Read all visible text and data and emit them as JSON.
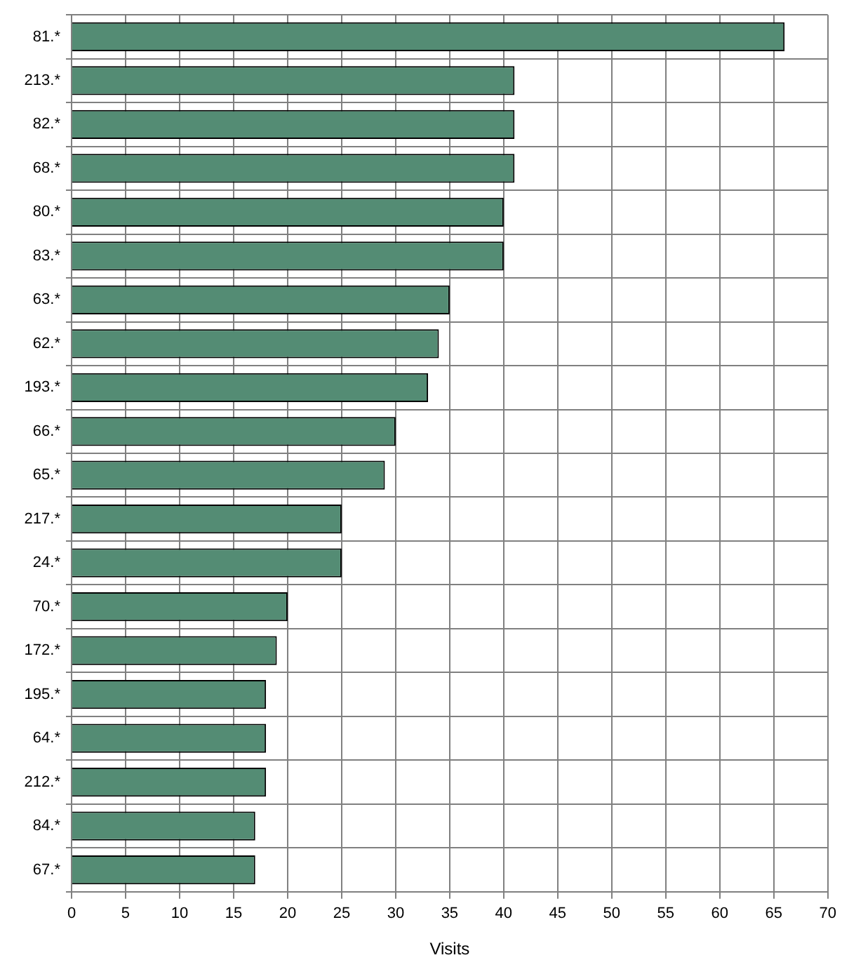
{
  "chart_data": {
    "type": "bar",
    "orientation": "horizontal",
    "categories": [
      "81.*",
      "213.*",
      "82.*",
      "68.*",
      "80.*",
      "83.*",
      "63.*",
      "62.*",
      "193.*",
      "66.*",
      "65.*",
      "217.*",
      "24.*",
      "70.*",
      "172.*",
      "195.*",
      "64.*",
      "212.*",
      "84.*",
      "67.*"
    ],
    "values": [
      66,
      41,
      41,
      41,
      40,
      40,
      35,
      34,
      33,
      30,
      29,
      25,
      25,
      20,
      19,
      18,
      18,
      18,
      17,
      17
    ],
    "color": "#548c74",
    "xlabel": "Visits",
    "xlim": [
      0,
      70
    ],
    "xticks": [
      0,
      5,
      10,
      15,
      20,
      25,
      30,
      35,
      40,
      45,
      50,
      55,
      60,
      65,
      70
    ],
    "grid": true
  }
}
